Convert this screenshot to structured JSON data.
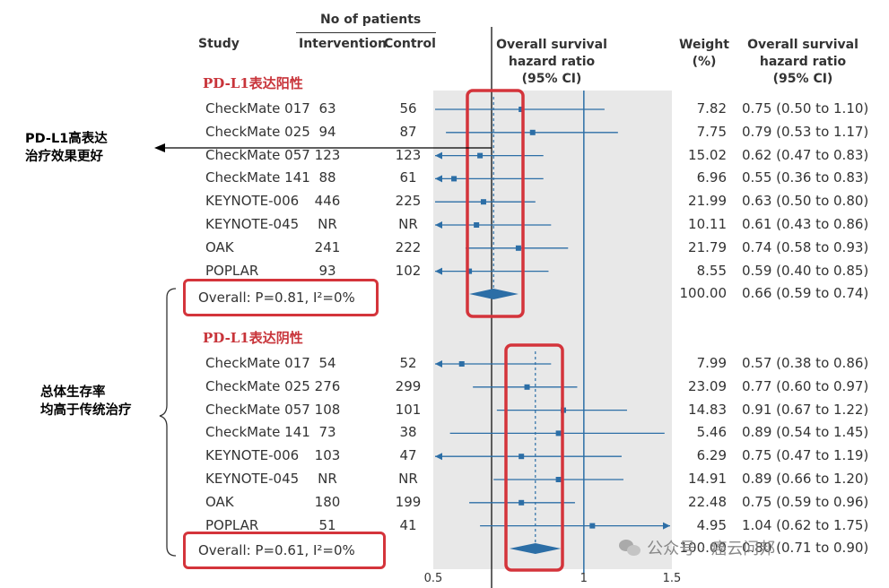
{
  "header": {
    "no_of_patients": "No of patients",
    "study": "Study",
    "intervention": "Intervention",
    "control": "Control",
    "hr_title": [
      "Overall survival",
      "hazard ratio",
      "(95% CI)"
    ],
    "weight_title": [
      "Weight",
      "(%)"
    ],
    "hrci_title": [
      "Overall survival",
      "hazard ratio",
      "(95% CI)"
    ]
  },
  "notes": {
    "top": [
      "PD-L1高表达",
      "治疗效果更好"
    ],
    "bottom": [
      "总体生存率",
      "均高于传统治疗"
    ]
  },
  "watermark": "公众号 · 癌云问邦",
  "chart_data": {
    "type": "forest",
    "x_axis": {
      "scale": "log",
      "xlim": [
        0.5,
        1.5
      ],
      "ticks": [
        0.5,
        1,
        1.5
      ],
      "tick_labels": [
        "0.5",
        "1",
        "1.5"
      ]
    },
    "groups": [
      {
        "title": "PD-L1表达阳性",
        "studies": [
          {
            "study": "CheckMate 017",
            "intervention": "63",
            "control": "56",
            "hr": 0.75,
            "lo": 0.5,
            "hi": 1.1,
            "weight": "7.82",
            "ci_text": "0.75 (0.50 to 1.10)"
          },
          {
            "study": "CheckMate 025",
            "intervention": "94",
            "control": "87",
            "hr": 0.79,
            "lo": 0.53,
            "hi": 1.17,
            "weight": "7.75",
            "ci_text": "0.79 (0.53 to 1.17)"
          },
          {
            "study": "CheckMate 057",
            "intervention": "123",
            "control": "123",
            "hr": 0.62,
            "lo": 0.47,
            "hi": 0.83,
            "weight": "15.02",
            "ci_text": "0.62 (0.47 to 0.83)"
          },
          {
            "study": "CheckMate 141",
            "intervention": "88",
            "control": "61",
            "hr": 0.55,
            "lo": 0.36,
            "hi": 0.83,
            "weight": "6.96",
            "ci_text": "0.55 (0.36 to 0.83)"
          },
          {
            "study": "KEYNOTE-006",
            "intervention": "446",
            "control": "225",
            "hr": 0.63,
            "lo": 0.5,
            "hi": 0.8,
            "weight": "21.99",
            "ci_text": "0.63 (0.50 to 0.80)"
          },
          {
            "study": "KEYNOTE-045",
            "intervention": "NR",
            "control": "NR",
            "hr": 0.61,
            "lo": 0.43,
            "hi": 0.86,
            "weight": "10.11",
            "ci_text": "0.61 (0.43 to 0.86)"
          },
          {
            "study": "OAK",
            "intervention": "241",
            "control": "222",
            "hr": 0.74,
            "lo": 0.58,
            "hi": 0.93,
            "weight": "21.79",
            "ci_text": "0.74 (0.58 to 0.93)"
          },
          {
            "study": "POPLAR",
            "intervention": "93",
            "control": "102",
            "hr": 0.59,
            "lo": 0.4,
            "hi": 0.85,
            "weight": "8.55",
            "ci_text": "0.59 (0.40 to 0.85)"
          }
        ],
        "overall": {
          "label": "Overall: P=0.81, I²=0%",
          "hr": 0.66,
          "lo": 0.59,
          "hi": 0.74,
          "weight": "100.00",
          "ci_text": "0.66 (0.59 to 0.74)"
        }
      },
      {
        "title": "PD-L1表达阴性",
        "studies": [
          {
            "study": "CheckMate 017",
            "intervention": "54",
            "control": "52",
            "hr": 0.57,
            "lo": 0.38,
            "hi": 0.86,
            "weight": "7.99",
            "ci_text": "0.57 (0.38 to 0.86)"
          },
          {
            "study": "CheckMate 025",
            "intervention": "276",
            "control": "299",
            "hr": 0.77,
            "lo": 0.6,
            "hi": 0.97,
            "weight": "23.09",
            "ci_text": "0.77 (0.60 to 0.97)"
          },
          {
            "study": "CheckMate 057",
            "intervention": "108",
            "control": "101",
            "hr": 0.91,
            "lo": 0.67,
            "hi": 1.22,
            "weight": "14.83",
            "ci_text": "0.91 (0.67 to 1.22)"
          },
          {
            "study": "CheckMate 141",
            "intervention": "73",
            "control": "38",
            "hr": 0.89,
            "lo": 0.54,
            "hi": 1.45,
            "weight": "5.46",
            "ci_text": "0.89 (0.54 to 1.45)"
          },
          {
            "study": "KEYNOTE-006",
            "intervention": "103",
            "control": "47",
            "hr": 0.75,
            "lo": 0.47,
            "hi": 1.19,
            "weight": "6.29",
            "ci_text": "0.75 (0.47 to 1.19)"
          },
          {
            "study": "KEYNOTE-045",
            "intervention": "NR",
            "control": "NR",
            "hr": 0.89,
            "lo": 0.66,
            "hi": 1.2,
            "weight": "14.91",
            "ci_text": "0.89 (0.66 to 1.20)"
          },
          {
            "study": "OAK",
            "intervention": "180",
            "control": "199",
            "hr": 0.75,
            "lo": 0.59,
            "hi": 0.96,
            "weight": "22.48",
            "ci_text": "0.75 (0.59 to 0.96)"
          },
          {
            "study": "POPLAR",
            "intervention": "51",
            "control": "41",
            "hr": 1.04,
            "lo": 0.62,
            "hi": 1.75,
            "weight": "4.95",
            "ci_text": "1.04 (0.62 to 1.75)"
          }
        ],
        "overall": {
          "label": "Overall: P=0.61, I²=0%",
          "hr": 0.8,
          "lo": 0.71,
          "hi": 0.9,
          "weight": "100.00",
          "ci_text": "0.80 (0.71 to 0.90)"
        }
      }
    ]
  }
}
